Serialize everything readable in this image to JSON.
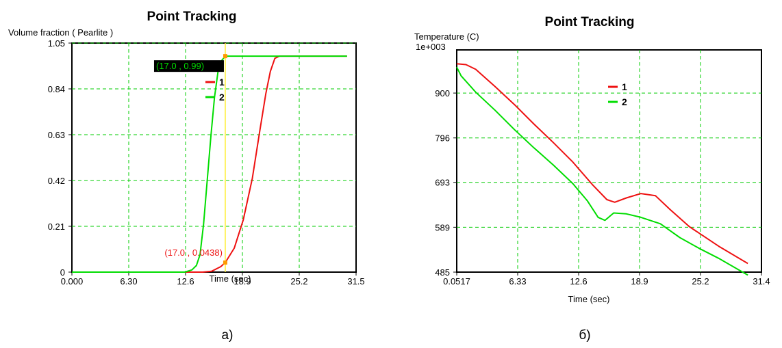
{
  "panels": [
    {
      "caption": "а)",
      "chart_data": {
        "type": "line",
        "title": "Point Tracking",
        "xlabel": "Time (sec)",
        "ylabel": "Volume fraction ( Pearlite )",
        "xlim": [
          0.0,
          31.5
        ],
        "ylim": [
          0.0,
          1.05
        ],
        "xticks": [
          "0.000",
          "6.30",
          "12.6",
          "18.9",
          "25.2",
          "31.5"
        ],
        "yticks": [
          "0",
          "0.21",
          "0.42",
          "0.63",
          "0.84",
          "1.05"
        ],
        "grid": true,
        "legend_position": "top-center",
        "marker_x": 17.0,
        "series": [
          {
            "name": "1",
            "color": "#ee1111",
            "points": [
              [
                0,
                0
              ],
              [
                14.5,
                0
              ],
              [
                15.5,
                0.004
              ],
              [
                16.5,
                0.025
              ],
              [
                17.0,
                0.0438
              ],
              [
                18.0,
                0.11
              ],
              [
                19.0,
                0.24
              ],
              [
                20.0,
                0.43
              ],
              [
                20.8,
                0.64
              ],
              [
                21.5,
                0.82
              ],
              [
                22.0,
                0.92
              ],
              [
                22.5,
                0.98
              ],
              [
                23.0,
                0.99
              ],
              [
                30.5,
                0.99
              ]
            ]
          },
          {
            "name": "2",
            "color": "#00dd00",
            "points": [
              [
                0,
                0
              ],
              [
                12.5,
                0
              ],
              [
                13.3,
                0.01
              ],
              [
                13.8,
                0.03
              ],
              [
                14.2,
                0.08
              ],
              [
                14.6,
                0.22
              ],
              [
                15.0,
                0.42
              ],
              [
                15.4,
                0.62
              ],
              [
                15.8,
                0.8
              ],
              [
                16.2,
                0.92
              ],
              [
                16.6,
                0.97
              ],
              [
                17.0,
                0.99
              ],
              [
                30.5,
                0.99
              ]
            ]
          }
        ],
        "annotations": [
          {
            "text": "(17.0 , 0.99)",
            "x": 17.0,
            "y": 0.99,
            "color": "#00dd00",
            "background": "#000000"
          },
          {
            "text": "(17.0 , 0.0438)",
            "x": 17.0,
            "y": 0.0438,
            "color": "#ee1111",
            "background": "none"
          }
        ]
      }
    },
    {
      "caption": "б)",
      "chart_data": {
        "type": "line",
        "title": "Point Tracking",
        "xlabel": "Time (sec)",
        "ylabel": "Temperature (C)",
        "yscale_label": "1e+003",
        "xlim": [
          0.0517,
          31.4
        ],
        "ylim": [
          485,
          1000
        ],
        "xticks": [
          "0.0517",
          "6.33",
          "12.6",
          "18.9",
          "25.2",
          "31.4"
        ],
        "yticks": [
          "485",
          "589",
          "693",
          "796",
          "900"
        ],
        "grid": true,
        "legend_position": "top-center",
        "series": [
          {
            "name": "1",
            "color": "#ee1111",
            "points": [
              [
                0.05,
                968
              ],
              [
                1.0,
                966
              ],
              [
                2.0,
                955
              ],
              [
                4.0,
                915
              ],
              [
                6.0,
                873
              ],
              [
                8.0,
                828
              ],
              [
                10.0,
                785
              ],
              [
                12.0,
                740
              ],
              [
                14.0,
                688
              ],
              [
                15.5,
                653
              ],
              [
                16.3,
                647
              ],
              [
                17.5,
                657
              ],
              [
                19.0,
                667
              ],
              [
                20.5,
                662
              ],
              [
                22.0,
                630
              ],
              [
                24.0,
                590
              ],
              [
                27.0,
                545
              ],
              [
                30.0,
                505
              ]
            ]
          },
          {
            "name": "2",
            "color": "#00dd00",
            "points": [
              [
                0.05,
                960
              ],
              [
                0.5,
                940
              ],
              [
                2.0,
                902
              ],
              [
                4.0,
                860
              ],
              [
                6.0,
                815
              ],
              [
                8.0,
                773
              ],
              [
                10.0,
                733
              ],
              [
                12.0,
                690
              ],
              [
                13.5,
                650
              ],
              [
                14.6,
                612
              ],
              [
                15.3,
                605
              ],
              [
                16.2,
                622
              ],
              [
                17.5,
                620
              ],
              [
                19.0,
                612
              ],
              [
                21.0,
                597
              ],
              [
                23.0,
                565
              ],
              [
                25.0,
                540
              ],
              [
                27.0,
                517
              ],
              [
                30.0,
                478
              ]
            ]
          }
        ]
      }
    }
  ]
}
